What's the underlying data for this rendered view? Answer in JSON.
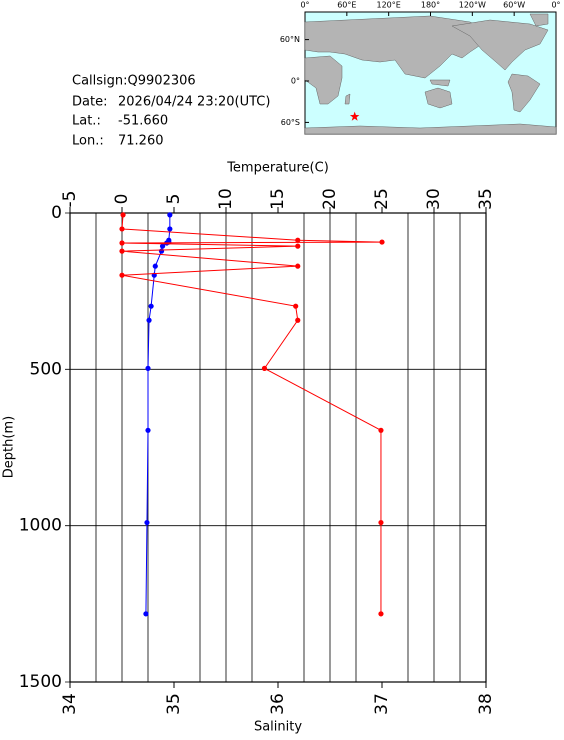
{
  "chart_data": {
    "type": "profile",
    "info": {
      "callsign": "Callsign:Q9902306",
      "date_label": "Date:",
      "date": "2026/04/24 23:20(UTC)",
      "lat": {
        "label": "Lat.:",
        "value": -51.66,
        "value_label": "-51.660"
      },
      "lon": {
        "label": "Lon.:",
        "value": 71.26,
        "value_label": "71.260"
      }
    },
    "map": {
      "lonticks": [
        {
          "value": 0,
          "label": "0°"
        },
        {
          "value": 60,
          "label": "60°E"
        },
        {
          "value": 120,
          "label": "120°E"
        },
        {
          "value": 180,
          "label": "180°"
        },
        {
          "value": 240,
          "label": "120°W"
        },
        {
          "value": 300,
          "label": "60°W"
        },
        {
          "value": 360,
          "label": "0°"
        }
      ],
      "latticks": [
        {
          "value": 60,
          "label": "60°N"
        },
        {
          "value": 0,
          "label": "0°"
        },
        {
          "value": -60,
          "label": "60°S"
        }
      ],
      "marker_color": "#ff0000"
    },
    "x2label": "Temperature(C)",
    "xlabel": "Salinity",
    "ylabel": "Depth(m)",
    "x2lim": [
      -5,
      35
    ],
    "x2ticks": [
      -5,
      0,
      5,
      10,
      15,
      20,
      25,
      30,
      35
    ],
    "xlim": [
      34,
      38
    ],
    "xticks": [
      34,
      35,
      36,
      37,
      38
    ],
    "xminorticks": [
      34.25,
      34.5,
      34.75,
      35.25,
      35.5,
      35.75,
      36.25,
      36.5,
      36.75,
      37.25,
      37.5,
      37.75
    ],
    "ylim": [
      0,
      1500
    ],
    "yticks": [
      0,
      500,
      1000,
      1500
    ],
    "y_inverted": true,
    "depth": [
      6,
      51,
      87,
      93,
      96,
      106,
      122,
      170,
      199,
      298,
      343,
      497,
      695,
      990,
      1282
    ],
    "series": [
      {
        "color": "#0000ff",
        "axis": "x2",
        "values": [
          4.6,
          4.6,
          4.5,
          4.5,
          4.3,
          3.9,
          3.8,
          3.2,
          3.1,
          2.8,
          2.6,
          2.5,
          2.5,
          2.4,
          2.3
        ]
      },
      {
        "color": "#ff0000",
        "axis": "x",
        "values": [
          34.51,
          34.5,
          36.19,
          37.0,
          34.5,
          36.19,
          34.5,
          36.19,
          34.5,
          36.17,
          36.19,
          35.87,
          36.99,
          36.99,
          36.99
        ]
      }
    ]
  }
}
